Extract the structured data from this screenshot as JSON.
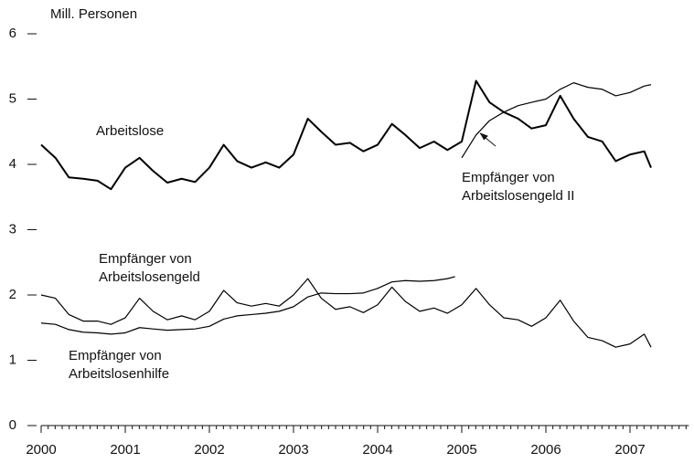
{
  "chart_data": {
    "type": "line",
    "y_label": "Mill. Personen",
    "xlim": [
      2000,
      2007.7
    ],
    "xticks": [
      2000,
      2001,
      2002,
      2003,
      2004,
      2005,
      2006,
      2007
    ],
    "ylim": [
      0,
      6
    ],
    "yticks": [
      0,
      1,
      2,
      3,
      4,
      5,
      6
    ],
    "series": [
      {
        "name": "Arbeitslose",
        "color": "#000000",
        "x": [
          2000,
          2000.17,
          2000.33,
          2000.5,
          2000.67,
          2000.83,
          2001,
          2001.17,
          2001.33,
          2001.5,
          2001.67,
          2001.83,
          2002,
          2002.17,
          2002.33,
          2002.5,
          2002.67,
          2002.83,
          2003,
          2003.17,
          2003.33,
          2003.5,
          2003.67,
          2003.83,
          2004,
          2004.17,
          2004.33,
          2004.5,
          2004.67,
          2004.83,
          2005,
          2005.17,
          2005.33,
          2005.5,
          2005.67,
          2005.83,
          2006,
          2006.17,
          2006.33,
          2006.5,
          2006.67,
          2006.83,
          2007,
          2007.17,
          2007.25
        ],
        "values": [
          4.3,
          4.1,
          3.8,
          3.78,
          3.75,
          3.62,
          3.95,
          4.1,
          3.9,
          3.72,
          3.78,
          3.73,
          3.95,
          4.3,
          4.05,
          3.95,
          4.03,
          3.95,
          4.15,
          4.7,
          4.5,
          4.3,
          4.33,
          4.2,
          4.3,
          4.62,
          4.45,
          4.25,
          4.35,
          4.22,
          4.35,
          5.28,
          4.95,
          4.8,
          4.7,
          4.55,
          4.6,
          5.05,
          4.7,
          4.42,
          4.35,
          4.05,
          4.15,
          4.2,
          3.95
        ]
      },
      {
        "name": "Empfänger von Arbeitslosengeld II",
        "color": "#000000",
        "x": [
          2005,
          2005.17,
          2005.33,
          2005.5,
          2005.67,
          2005.83,
          2006,
          2006.17,
          2006.33,
          2006.5,
          2006.67,
          2006.83,
          2007,
          2007.17,
          2007.25
        ],
        "values": [
          4.1,
          4.45,
          4.67,
          4.8,
          4.9,
          4.95,
          5.0,
          5.15,
          5.25,
          5.18,
          5.15,
          5.05,
          5.1,
          5.2,
          5.22
        ]
      },
      {
        "name": "Empfänger von Arbeitslosengeld",
        "color": "#000000",
        "x": [
          2000,
          2000.17,
          2000.33,
          2000.5,
          2000.67,
          2000.83,
          2001,
          2001.17,
          2001.33,
          2001.5,
          2001.67,
          2001.83,
          2002,
          2002.17,
          2002.33,
          2002.5,
          2002.67,
          2002.83,
          2003,
          2003.17,
          2003.33,
          2003.5,
          2003.67,
          2003.83,
          2004,
          2004.17,
          2004.33,
          2004.5,
          2004.67,
          2004.83,
          2005,
          2005.17,
          2005.33,
          2005.5,
          2005.67,
          2005.83,
          2006,
          2006.17,
          2006.33,
          2006.5,
          2006.67,
          2006.83,
          2007,
          2007.17,
          2007.25
        ],
        "values": [
          2.0,
          1.95,
          1.7,
          1.6,
          1.6,
          1.55,
          1.65,
          1.95,
          1.75,
          1.62,
          1.68,
          1.62,
          1.75,
          2.07,
          1.88,
          1.83,
          1.87,
          1.83,
          2.0,
          2.25,
          1.95,
          1.78,
          1.82,
          1.73,
          1.85,
          2.12,
          1.9,
          1.75,
          1.8,
          1.72,
          1.85,
          2.1,
          1.85,
          1.65,
          1.62,
          1.52,
          1.65,
          1.92,
          1.6,
          1.35,
          1.3,
          1.2,
          1.25,
          1.4,
          1.2
        ]
      },
      {
        "name": "Empfänger von Arbeitslosenhilfe",
        "color": "#000000",
        "x": [
          2000,
          2000.17,
          2000.33,
          2000.5,
          2000.67,
          2000.83,
          2001,
          2001.17,
          2001.33,
          2001.5,
          2001.67,
          2001.83,
          2002,
          2002.17,
          2002.33,
          2002.5,
          2002.67,
          2002.83,
          2003,
          2003.17,
          2003.33,
          2003.5,
          2003.67,
          2003.83,
          2004,
          2004.17,
          2004.33,
          2004.5,
          2004.67,
          2004.83,
          2004.92
        ],
        "values": [
          1.57,
          1.55,
          1.47,
          1.43,
          1.42,
          1.4,
          1.42,
          1.5,
          1.48,
          1.46,
          1.47,
          1.48,
          1.52,
          1.63,
          1.68,
          1.7,
          1.72,
          1.75,
          1.82,
          1.97,
          2.03,
          2.02,
          2.02,
          2.03,
          2.1,
          2.2,
          2.22,
          2.21,
          2.22,
          2.25,
          2.28
        ]
      }
    ],
    "annotations": [
      {
        "text": [
          "Arbeitslose"
        ]
      },
      {
        "text": [
          "Empfänger von",
          "Arbeitslosengeld II"
        ]
      },
      {
        "text": [
          "Empfänger von",
          "Arbeitslosengeld"
        ]
      },
      {
        "text": [
          "Empfänger von",
          "Arbeitslosenhilfe"
        ]
      }
    ]
  }
}
